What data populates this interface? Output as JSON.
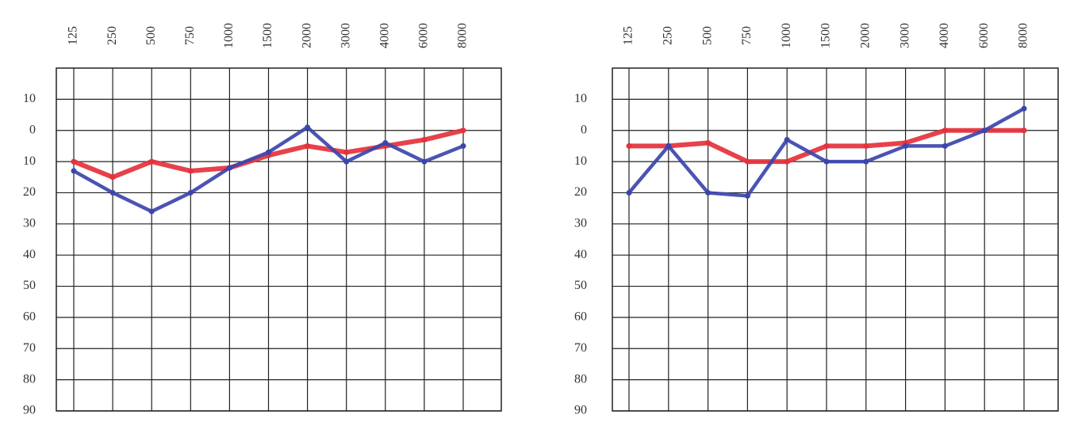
{
  "chart_data": [
    {
      "type": "line",
      "categories": [
        "125",
        "250",
        "500",
        "750",
        "1000",
        "1500",
        "2000",
        "3000",
        "4000",
        "6000",
        "8000"
      ],
      "series": [
        {
          "color": "#e5313c",
          "values": [
            10,
            15,
            10,
            13,
            12,
            8,
            5,
            7,
            5,
            3,
            0
          ]
        },
        {
          "color": "#3b45ad",
          "values": [
            13,
            20,
            26,
            20,
            12,
            7,
            -1,
            10,
            4,
            10,
            5
          ]
        }
      ],
      "ylim": [
        -20,
        90
      ],
      "y_inverted": true,
      "yticks": [
        {
          "value": -10,
          "label": "10"
        },
        0,
        10,
        20,
        30,
        40,
        50,
        60,
        70,
        80,
        90
      ],
      "grid": true
    },
    {
      "type": "line",
      "categories": [
        "125",
        "250",
        "500",
        "750",
        "1000",
        "1500",
        "2000",
        "3000",
        "4000",
        "6000",
        "8000"
      ],
      "series": [
        {
          "color": "#e5313c",
          "values": [
            5,
            5,
            4,
            10,
            10,
            5,
            5,
            4,
            0,
            0,
            0
          ]
        },
        {
          "color": "#3b45ad",
          "values": [
            20,
            5,
            20,
            21,
            3,
            10,
            10,
            5,
            5,
            0,
            -7
          ]
        }
      ],
      "ylim": [
        -20,
        90
      ],
      "y_inverted": true,
      "yticks": [
        {
          "value": -10,
          "label": "10"
        },
        0,
        10,
        20,
        30,
        40,
        50,
        60,
        70,
        80,
        90
      ],
      "grid": true
    }
  ]
}
